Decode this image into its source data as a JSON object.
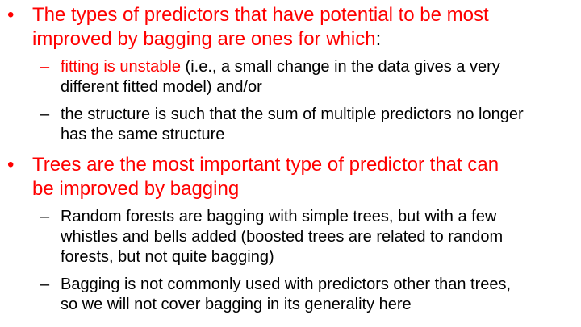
{
  "colors": {
    "accent": "#ff0000",
    "text": "#000000",
    "background": "#ffffff"
  },
  "bullets": [
    {
      "marker": "•",
      "lines": [
        {
          "text": "The types of predictors that have potential to be most",
          "tail": ""
        },
        {
          "text": "improved by bagging are ones for which",
          "tail": ":"
        }
      ],
      "sub": [
        {
          "marker": "–",
          "lines": [
            {
              "highlight": "fitting is unstable",
              "text": " (i.e., a small change in the data gives a very"
            },
            {
              "highlight": "",
              "text": "different fitted model) and/or"
            }
          ]
        },
        {
          "marker": "–",
          "lines": [
            {
              "highlight": "",
              "text": "the structure is such that the sum of multiple predictors no longer"
            },
            {
              "highlight": "",
              "text": "has the same structure"
            }
          ]
        }
      ]
    },
    {
      "marker": "•",
      "lines": [
        {
          "text": "Trees are the most important type of predictor that can",
          "tail": ""
        },
        {
          "text": "be improved by bagging",
          "tail": ""
        }
      ],
      "sub": [
        {
          "marker": "–",
          "lines": [
            {
              "highlight": "",
              "text": "Random forests are bagging with simple trees, but with a few"
            },
            {
              "highlight": "",
              "text": "whistles and bells added (boosted trees are related to random"
            },
            {
              "highlight": "",
              "text": "forests, but not quite bagging)"
            }
          ]
        },
        {
          "marker": "–",
          "lines": [
            {
              "highlight": "",
              "text": "Bagging is not commonly used with predictors other than trees,"
            },
            {
              "highlight": "",
              "text": "so we will not cover bagging in its generality here"
            }
          ]
        }
      ]
    }
  ]
}
